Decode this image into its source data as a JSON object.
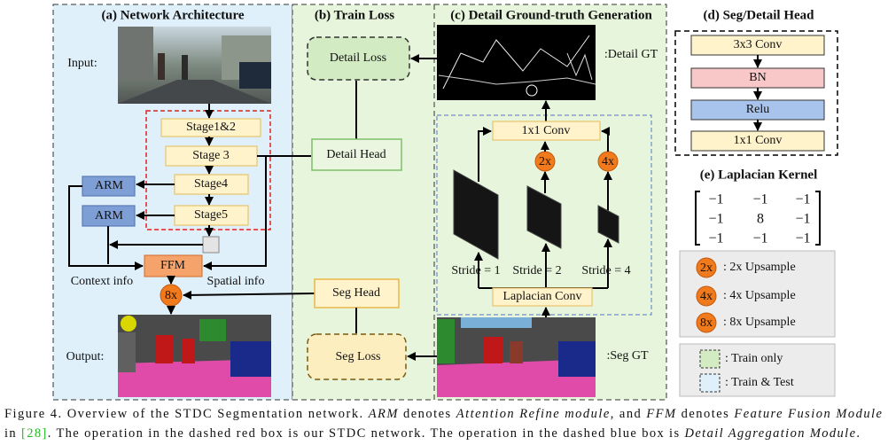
{
  "panels": {
    "a": "(a) Network Architecture",
    "b": "(b) Train Loss",
    "c": "(c) Detail Ground-truth Generation",
    "d": "(d) Seg/Detail Head",
    "e": "(e) Laplacian Kernel"
  },
  "labels": {
    "input": "Input:",
    "output": "Output:",
    "context": "Context info",
    "spatial": "Spatial info",
    "detail_gt": ":Detail GT",
    "seg_gt": ":Seg GT"
  },
  "nodes": {
    "stage12": "Stage1&2",
    "stage3": "Stage 3",
    "stage4": "Stage4",
    "stage5": "Stage5",
    "arm1": "ARM",
    "arm2": "ARM",
    "ffm": "FFM",
    "up8": "8x",
    "detail_loss": "Detail Loss",
    "detail_head": "Detail Head",
    "seg_head": "Seg Head",
    "seg_loss": "Seg Loss",
    "conv1x1": "1x1 Conv",
    "up2": "2x",
    "up4": "4x",
    "laplacian": "Laplacian Conv",
    "stride1": "Stride = 1",
    "stride2": "Stride = 2",
    "stride4": "Stride = 4"
  },
  "head": [
    "3x3 Conv",
    "BN",
    "Relu",
    "1x1 Conv"
  ],
  "kernel": [
    [
      "−1",
      "−1",
      "−1"
    ],
    [
      "−1",
      "8",
      "−1"
    ],
    [
      "−1",
      "−1",
      "−1"
    ]
  ],
  "legend": [
    {
      "icon": "2x",
      "text": ": 2x Upsample"
    },
    {
      "icon": "4x",
      "text": ": 4x Upsample"
    },
    {
      "icon": "8x",
      "text": ": 8x Upsample"
    },
    {
      "text": ": Train only"
    },
    {
      "text": ": Train & Test"
    }
  ],
  "caption": {
    "line1": [
      "Figure 4. Overview of the STDC Segmentation network. ",
      "ARM",
      " denotes ",
      "Attention Refine module",
      ", and ",
      "FFM",
      " denotes ",
      "Feature Fusion Module"
    ],
    "line2": [
      "in ",
      "[28]",
      ". The operation in the dashed red box is our STDC network. The operation in the dashed blue box is ",
      "Detail Aggregation Module",
      "."
    ]
  }
}
